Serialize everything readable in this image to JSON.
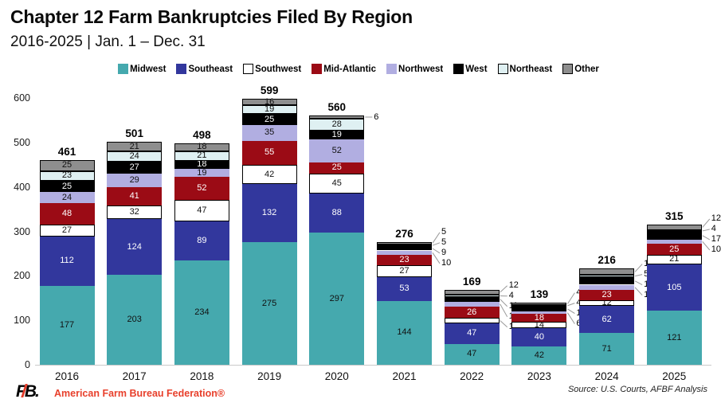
{
  "header": {
    "title": "Chapter 12 Farm Bankruptcies Filed By Region",
    "subtitle": "2016-2025 | Jan. 1 – Dec. 31"
  },
  "chart_data": {
    "type": "bar",
    "stacked": true,
    "title": "Chapter 12 Farm Bankruptcies Filed By Region",
    "subtitle": "2016-2025 | Jan. 1 – Dec. 31",
    "categories": [
      "2016",
      "2017",
      "2018",
      "2019",
      "2020",
      "2021",
      "2022",
      "2023",
      "2024",
      "2025"
    ],
    "series": [
      {
        "name": "Midwest",
        "color": "#45a9ae",
        "text_color": "#111111",
        "outline": false,
        "values": [
          177,
          203,
          234,
          275,
          297,
          144,
          47,
          42,
          71,
          121
        ],
        "label_pos": [
          "in",
          "in",
          "in",
          "in",
          "in",
          "in",
          "in",
          "in",
          "in",
          "in"
        ]
      },
      {
        "name": "Southeast",
        "color": "#32379d",
        "text_color": "#ffffff",
        "outline": false,
        "values": [
          112,
          124,
          89,
          132,
          88,
          53,
          47,
          40,
          62,
          105
        ],
        "label_pos": [
          "in",
          "in",
          "in",
          "in",
          "in",
          "in",
          "in",
          "in",
          "in",
          "in"
        ]
      },
      {
        "name": "Southwest",
        "color": "#ffffff",
        "text_color": "#111111",
        "outline": true,
        "values": [
          27,
          32,
          47,
          42,
          45,
          27,
          11,
          14,
          12,
          21
        ],
        "label_pos": [
          "in",
          "in",
          "in",
          "in",
          "in",
          "in",
          "right",
          "in",
          "in",
          "in"
        ]
      },
      {
        "name": "Mid-Atlantic",
        "color": "#9b0b15",
        "text_color": "#ffffff",
        "outline": false,
        "values": [
          48,
          41,
          52,
          55,
          25,
          23,
          26,
          18,
          23,
          25
        ],
        "label_pos": [
          "in",
          "in",
          "in",
          "in",
          "in",
          "in",
          "in",
          "in",
          "in",
          "in"
        ]
      },
      {
        "name": "Northwest",
        "color": "#b1aee1",
        "text_color": "#111111",
        "outline": false,
        "values": [
          24,
          29,
          19,
          35,
          52,
          10,
          11,
          6,
          12,
          10
        ],
        "label_pos": [
          "in",
          "in",
          "in",
          "in",
          "in",
          "right",
          "right",
          "right",
          "right",
          "right"
        ]
      },
      {
        "name": "West",
        "color": "#000000",
        "text_color": "#ffffff",
        "outline": false,
        "values": [
          25,
          27,
          18,
          25,
          19,
          9,
          11,
          11,
          17,
          17
        ],
        "label_pos": [
          "in",
          "in",
          "in",
          "in",
          "in",
          "right",
          "right",
          "right",
          "right",
          "right"
        ]
      },
      {
        "name": "Northeast",
        "color": "#dff0f2",
        "text_color": "#111111",
        "outline": true,
        "values": [
          23,
          24,
          21,
          19,
          28,
          5,
          4,
          4,
          5,
          4
        ],
        "label_pos": [
          "in",
          "in",
          "in",
          "in",
          "in",
          "right",
          "right",
          "right",
          "right",
          "right"
        ]
      },
      {
        "name": "Other",
        "color": "#8e8e8e",
        "text_color": "#111111",
        "outline": true,
        "values": [
          25,
          21,
          18,
          16,
          6,
          5,
          12,
          4,
          14,
          12
        ],
        "label_pos": [
          "in",
          "in",
          "in",
          "in",
          "right",
          "right",
          "right",
          "right",
          "right",
          "right"
        ]
      }
    ],
    "totals": [
      461,
      501,
      498,
      599,
      560,
      276,
      169,
      139,
      216,
      315
    ],
    "yticks": [
      0,
      100,
      200,
      300,
      400,
      500,
      600
    ],
    "ylim": [
      0,
      600
    ],
    "grid": false,
    "legend_position": "top"
  },
  "footer": {
    "logo_text": "FB.",
    "org": "American Farm Bureau Federation®",
    "source": "Source: U.S. Courts, AFBF Analysis"
  }
}
